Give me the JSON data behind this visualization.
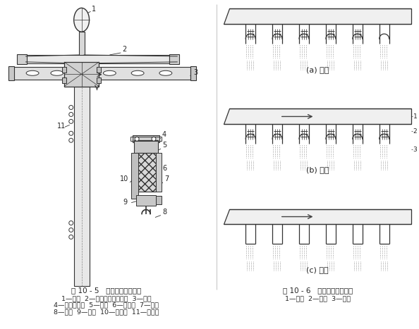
{
  "title_left": "图 10 - 5   星形架结构示意图",
  "title_right": "图 10 - 6   星形架工作过程图",
  "legend_left_line1": "1—吊环  2—平面螺旋盘组合件  3—机架",
  "legend_left_line2": "4—离合定位器  5—轮辐  6—针板架  7—针板",
  "legend_left_line3": "8—钩针  9—挡条  10—挡条板  11—多孔管",
  "legend_right": "1—挡条  2—钩针  3—坯绸",
  "label_a": "(a) 挂绸",
  "label_b": "(b) 精练",
  "label_c": "(c) 脱钩",
  "bg_color": "#ffffff",
  "line_color": "#333333",
  "text_color": "#222222"
}
